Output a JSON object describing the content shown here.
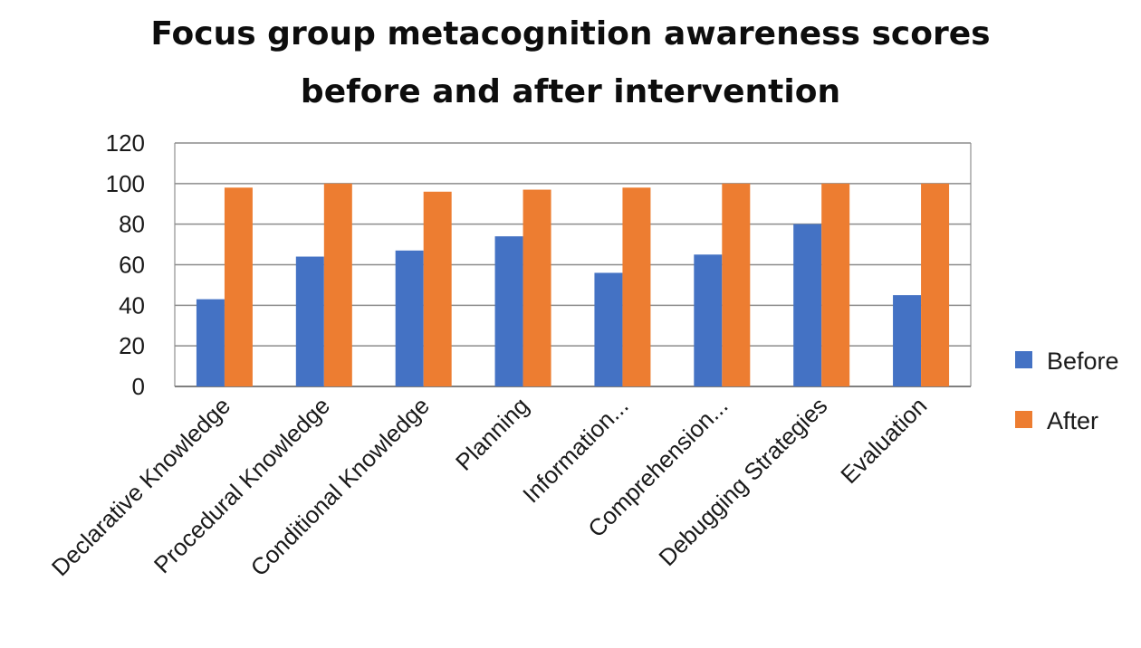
{
  "chart_data": {
    "type": "bar",
    "title": "Focus group metacognition awareness scores before and after intervention",
    "title_lines": [
      "Focus group metacognition awareness scores",
      "before and after intervention"
    ],
    "xlabel": "",
    "ylabel": "",
    "categories": [
      "Declarative Knowledge",
      "Procedural Knowledge",
      "Conditional Knowledge",
      "Planning",
      "Information...",
      "Comprehension...",
      "Debugging Strategies",
      "Evaluation"
    ],
    "series": [
      {
        "name": "Before",
        "color": "#4472C4",
        "values": [
          43,
          64,
          67,
          74,
          56,
          65,
          80,
          45
        ]
      },
      {
        "name": "After",
        "color": "#ED7D31",
        "values": [
          98,
          100,
          96,
          97,
          98,
          100,
          100,
          100
        ]
      }
    ],
    "ylim": [
      0,
      120
    ],
    "yticks": [
      0,
      20,
      40,
      60,
      80,
      100,
      120
    ],
    "grid": true,
    "legend_position": "right"
  }
}
